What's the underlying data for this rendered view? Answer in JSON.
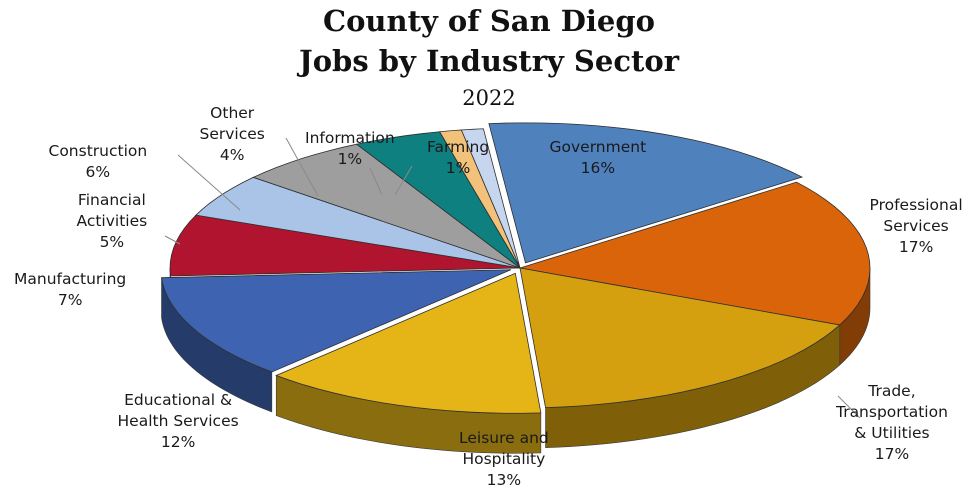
{
  "chart_data": {
    "type": "pie",
    "title": "County of San Diego",
    "subtitle": "Jobs by Industry Sector",
    "year_label": "2022",
    "slices": [
      {
        "name": "Government",
        "value": 16,
        "label": "16%",
        "color": "#4f81bd"
      },
      {
        "name": "Professional Services",
        "value": 17,
        "label": "17%",
        "color": "#d9640a"
      },
      {
        "name": "Trade, Transportation & Utilities",
        "value": 17,
        "label": "17%",
        "color": "#d4a00f"
      },
      {
        "name": "Leisure and Hospitality",
        "value": 13,
        "label": "13%",
        "color": "#e5b517"
      },
      {
        "name": "Educational & Health Services",
        "value": 12,
        "label": "12%",
        "color": "#3e63b0"
      },
      {
        "name": "Manufacturing",
        "value": 7,
        "label": "7%",
        "color": "#b0142e"
      },
      {
        "name": "Financial Activities",
        "value": 5,
        "label": "5%",
        "color": "#a9c4e6"
      },
      {
        "name": "Construction",
        "value": 6,
        "label": "6%",
        "color": "#9e9e9e"
      },
      {
        "name": "Other Services",
        "value": 4,
        "label": "4%",
        "color": "#0e8080"
      },
      {
        "name": "Information",
        "value": 1,
        "label": "1%",
        "color": "#f3c27a"
      },
      {
        "name": "Farming",
        "value": 1,
        "label": "1%",
        "color": "#c6d6ee"
      }
    ],
    "labels": [
      {
        "lines": [
          "Government",
          "16%"
        ]
      },
      {
        "lines": [
          "Professional",
          "Services",
          "17%"
        ]
      },
      {
        "lines": [
          "Trade,",
          "Transportation",
          "& Utilities",
          "17%"
        ]
      },
      {
        "lines": [
          "Leisure and",
          "Hospitality",
          "13%"
        ]
      },
      {
        "lines": [
          "Educational &",
          "Health Services",
          "12%"
        ]
      },
      {
        "lines": [
          "Manufacturing",
          "7%"
        ]
      },
      {
        "lines": [
          "Financial",
          "Activities",
          "5%"
        ]
      },
      {
        "lines": [
          "Construction",
          "6%"
        ]
      },
      {
        "lines": [
          "Other",
          "Services",
          "4%"
        ]
      },
      {
        "lines": [
          "Information",
          "1%"
        ]
      },
      {
        "lines": [
          "Farming",
          "1%"
        ]
      }
    ]
  }
}
